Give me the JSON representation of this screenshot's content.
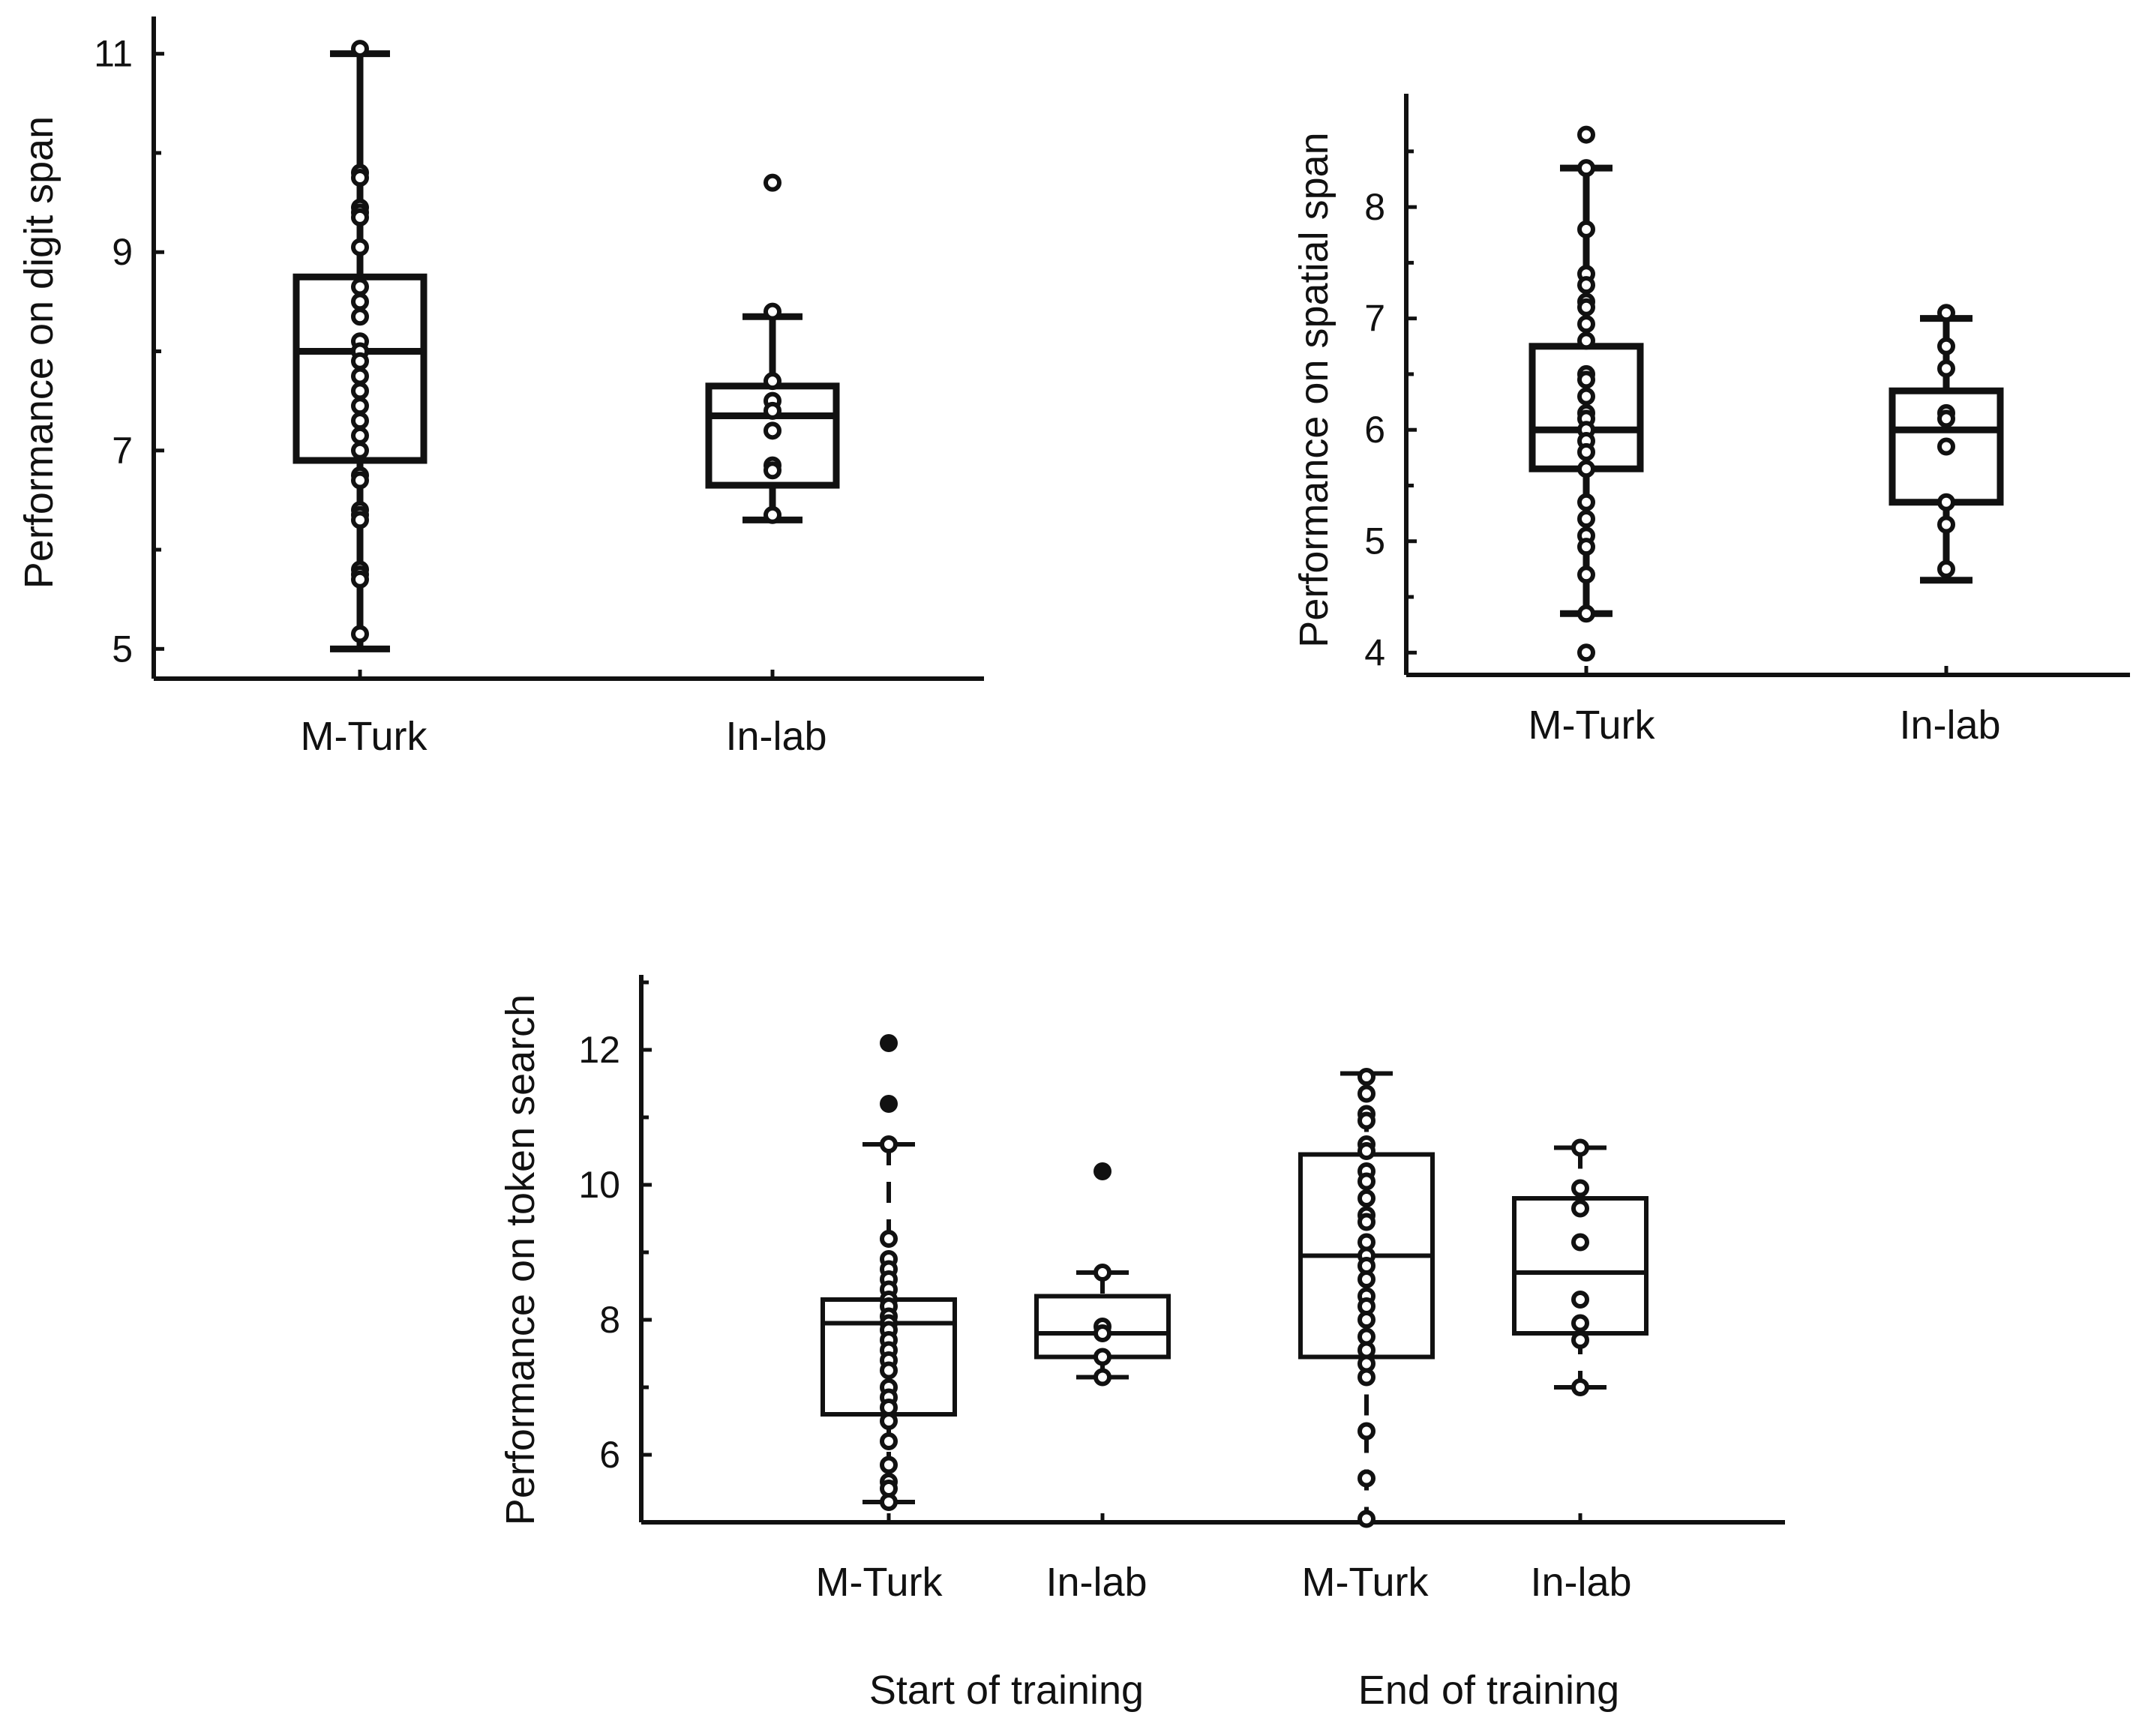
{
  "chart_data": [
    {
      "type": "box",
      "id": "digit",
      "ylabel": "Performance on digit span",
      "ylim": [
        4.7,
        11.3
      ],
      "yticks": [
        5,
        7,
        9,
        11
      ],
      "minor_ticks": [
        6,
        8,
        10
      ],
      "categories": [
        "M-Turk",
        "In-lab"
      ],
      "boxes": [
        {
          "category": "M-Turk",
          "min": 5,
          "q1": 6.9,
          "median": 8,
          "q3": 8.75,
          "max": 11,
          "points": [
            11.05,
            9.8,
            9.75,
            9.45,
            9.4,
            9.35,
            9.05,
            8.65,
            8.5,
            8.35,
            8.1,
            8.0,
            7.9,
            7.75,
            7.6,
            7.45,
            7.3,
            7.15,
            7.0,
            6.75,
            6.7,
            6.4,
            6.35,
            6.3,
            5.8,
            5.75,
            5.7,
            5.15
          ]
        },
        {
          "category": "In-lab",
          "min": 6.3,
          "q1": 6.65,
          "median": 7.35,
          "q3": 7.65,
          "max": 8.35,
          "points": [
            9.7,
            8.4,
            7.7,
            7.5,
            7.4,
            7.2,
            6.85,
            6.8,
            6.35
          ]
        }
      ]
    },
    {
      "type": "box",
      "id": "spatial",
      "ylabel": "Performance on spatial span",
      "ylim": [
        3.8,
        8.95
      ],
      "yticks": [
        4,
        5,
        6,
        7,
        8
      ],
      "minor_ticks": [
        4.5,
        5.5,
        6.5,
        7.5,
        8.5
      ],
      "categories": [
        "M-Turk",
        "In-lab"
      ],
      "boxes": [
        {
          "category": "M-Turk",
          "min": 4.35,
          "q1": 5.65,
          "median": 6,
          "q3": 6.75,
          "max": 8.35,
          "points": [
            8.65,
            8.35,
            7.8,
            7.4,
            7.3,
            7.15,
            7.1,
            6.95,
            6.8,
            6.5,
            6.45,
            6.3,
            6.15,
            6.1,
            6.0,
            5.9,
            5.8,
            5.65,
            5.35,
            5.2,
            5.05,
            4.95,
            4.7,
            4.35,
            4.0
          ]
        },
        {
          "category": "In-lab",
          "min": 4.65,
          "q1": 5.35,
          "median": 6,
          "q3": 6.35,
          "max": 7,
          "points": [
            7.05,
            6.75,
            6.55,
            6.15,
            6.1,
            5.85,
            5.35,
            5.15,
            4.75
          ]
        }
      ]
    },
    {
      "type": "box",
      "id": "token",
      "ylabel": "Performance on token search",
      "ylim": [
        5,
        13
      ],
      "yticks": [
        6,
        8,
        10,
        12
      ],
      "minor_ticks": [
        7,
        9,
        11,
        13
      ],
      "categories": [
        "M-Turk",
        "In-lab",
        "M-Turk",
        "In-lab"
      ],
      "group_labels": [
        "Start of training",
        "End of training"
      ],
      "boxes": [
        {
          "category": "M-Turk",
          "group": "Start of training",
          "min": 5.3,
          "q1": 6.6,
          "median": 7.95,
          "q3": 8.3,
          "max": 10.6,
          "points": [
            12.1,
            11.2,
            10.6,
            9.2,
            8.9,
            8.75,
            8.6,
            8.45,
            8.3,
            8.2,
            8.05,
            7.95,
            7.85,
            7.7,
            7.55,
            7.4,
            7.25,
            7.0,
            6.85,
            6.7,
            6.5,
            6.2,
            5.85,
            5.6,
            5.5,
            5.3
          ]
        },
        {
          "category": "In-lab",
          "group": "Start of training",
          "min": 7.15,
          "q1": 7.45,
          "median": 7.8,
          "q3": 8.35,
          "max": 8.7,
          "points": [
            10.2,
            8.7,
            7.9,
            7.8,
            7.45,
            7.15
          ]
        },
        {
          "category": "M-Turk",
          "group": "End of training",
          "min": 5,
          "q1": 7.45,
          "median": 8.95,
          "q3": 10.45,
          "max": 11.65,
          "points": [
            11.6,
            11.35,
            11.05,
            10.95,
            10.6,
            10.5,
            10.2,
            10.05,
            9.8,
            9.55,
            9.45,
            9.15,
            8.95,
            8.8,
            8.6,
            8.35,
            8.2,
            8.0,
            7.75,
            7.55,
            7.35,
            7.15,
            6.35,
            5.65,
            5.05
          ]
        },
        {
          "category": "In-lab",
          "group": "End of training",
          "min": 7,
          "q1": 7.8,
          "median": 8.7,
          "q3": 9.8,
          "max": 10.55,
          "points": [
            10.55,
            9.95,
            9.65,
            9.15,
            8.3,
            7.95,
            7.7,
            7.0
          ]
        }
      ]
    }
  ],
  "colors": {
    "ink": "#111111",
    "background": "#ffffff"
  }
}
